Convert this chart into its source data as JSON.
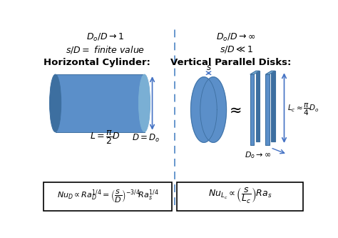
{
  "bg_color": "#ffffff",
  "divider_color": "#5b8fc9",
  "shape_color": "#5b8fc9",
  "shape_dark": "#3d6fa0",
  "shape_light": "#7aafd4",
  "arrow_color": "#4472C4",
  "text_color": "#000000",
  "left_condition1": "$D_o / D \\rightarrow 1$",
  "left_condition2": "$s / D = $ finite value",
  "right_condition1": "$D_o / D \\rightarrow \\infty$",
  "right_condition2": "$s / D \\ll 1$",
  "left_heading": "Horizontal Cylinder:",
  "right_heading": "Vertical Parallel Disks:",
  "left_label1": "$D = D_o$",
  "left_label2": "$L = \\dfrac{\\pi}{2} D$",
  "right_label1": "$L_c \\approx \\dfrac{\\pi}{4} D_o$",
  "right_label2": "$D_o \\rightarrow \\infty$",
  "right_label3": "$s$",
  "approx_symbol": "$\\approx$",
  "left_formula": "$Nu_D \\propto Ra_D^{1/4} = \\left(\\dfrac{s}{D}\\right)^{-3/4}\\! Ra_s^{1/4}$",
  "right_formula": "$Nu_{L_c} \\propto \\left(\\dfrac{s}{L_c}\\right) Ra_s$"
}
